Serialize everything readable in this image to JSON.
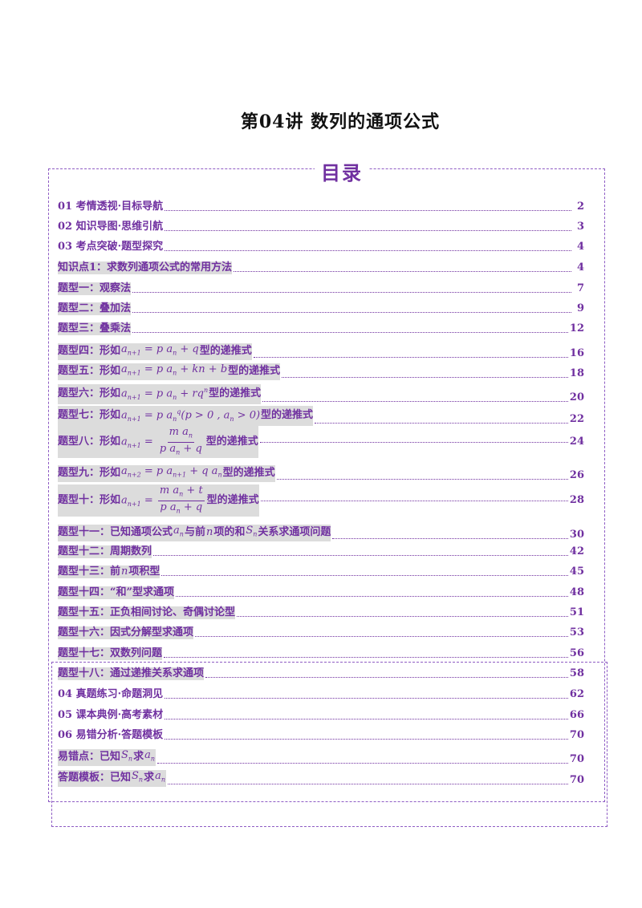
{
  "doc_title": "第04讲  数列的通项公式",
  "toc_heading": "目录",
  "entries": [
    {
      "text": "01 考情透视·目标导航",
      "page": "2"
    },
    {
      "text": "02 知识导图·思维引航",
      "page": "3"
    },
    {
      "text": "03 考点突破·题型探究",
      "page": "4"
    },
    {
      "text": "知识点1：求数列通项公式的常用方法",
      "page": "4"
    },
    {
      "text": "题型一：观察法",
      "page": "7"
    },
    {
      "text": "题型二：叠加法",
      "page": "9"
    },
    {
      "text": "题型三：叠乘法",
      "page": "12"
    },
    {
      "text_pre": "题型四：形如",
      "formula": "a(n+1) = p a(n) + q",
      "text_post": "型的递推式",
      "page": "16"
    },
    {
      "text_pre": "题型五：形如",
      "formula": "a(n+1) = p a(n) + kn + b",
      "text_post": "型的递推式",
      "page": "18"
    },
    {
      "text_pre": "题型六：形如",
      "formula": "a(n+1) = p a(n) + r q^n",
      "text_post": "型的递推式",
      "page": "20"
    },
    {
      "text_pre": "题型七：形如",
      "formula": "a(n+1) = p a(n)^q (p > 0, a(n) > 0)",
      "text_post": "型的递推式",
      "page": "22"
    },
    {
      "text_pre": "题型八：形如",
      "formula": "a(n+1) = m a(n) / (p a(n) + q)",
      "text_post": "型的递推式",
      "page": "24"
    },
    {
      "text_pre": "题型九：形如",
      "formula": "a(n+2) = p a(n+1) + q a(n)",
      "text_post": "型的递推式",
      "page": "26"
    },
    {
      "text_pre": "题型十：形如",
      "formula": "a(n+1) = (m a(n) + t) / (p a(n) + q)",
      "text_post": "型的递推式",
      "page": "28"
    },
    {
      "text_pre": "题型十一：已知通项公式",
      "text_mid1": "与前",
      "text_mid2": "项的和",
      "text_post": "关系求通项问题",
      "page": "30"
    },
    {
      "text": "题型十二：周期数列",
      "page": "42"
    },
    {
      "text_pre": "题型十三：前",
      "text_post": "项积型",
      "page": "45"
    },
    {
      "text": "题型十四：“和”型求通项",
      "page": "48"
    },
    {
      "text": "题型十五：正负相间讨论、奇偶讨论型",
      "page": "51"
    },
    {
      "text": "题型十六：因式分解型求通项",
      "page": "53"
    },
    {
      "text": "题型十七：双数列问题",
      "page": "56"
    },
    {
      "text": "题型十八：通过递推关系求通项",
      "page": "58"
    },
    {
      "text": "04 真题练习·命题洞见",
      "page": "62"
    },
    {
      "text": "05 课本典例·高考素材",
      "page": "66"
    },
    {
      "text": "06 易错分析·答题模板",
      "page": "70"
    },
    {
      "text_pre": "易错点：已知",
      "text_mid1": "求",
      "page": "70"
    },
    {
      "text_pre": "答题模板：已知",
      "text_mid1": "求",
      "page": "70"
    }
  ]
}
